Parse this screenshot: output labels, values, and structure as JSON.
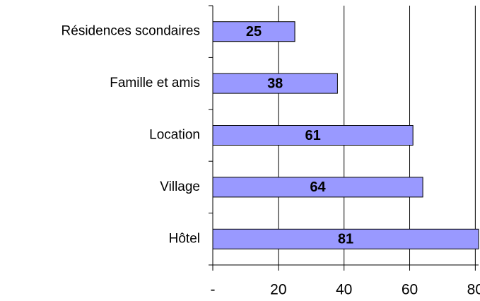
{
  "chart_data": {
    "type": "barh",
    "categories": [
      "Résidences scondaires",
      "Famille et amis",
      "Location",
      "Village",
      "Hôtel"
    ],
    "values": [
      25,
      38,
      61,
      64,
      81
    ],
    "color": "#9999ff",
    "xlim": [
      0,
      81
    ],
    "xticks": [
      {
        "value": 0,
        "label": "-"
      },
      20,
      40,
      60,
      80
    ],
    "grid": true
  }
}
